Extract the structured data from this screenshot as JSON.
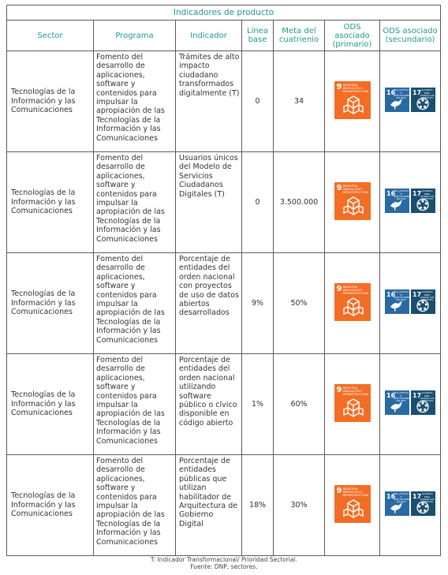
{
  "table_title": "Indicadores de producto",
  "headers": {
    "sector": "Sector",
    "programa": "Programa",
    "indicador": "Indicador",
    "linea_base": "Línea base",
    "meta": "Meta del cuatrienio",
    "ods_primario": "ODS asociado (primario)",
    "ods_secundario": "ODS asociado (secundario)"
  },
  "rows": [
    {
      "sector": "Tecnologías de la Información y las Comunicaciones",
      "programa": "Fomento del desarrollo de aplicaciones, software y contenidos para impulsar la apropiación de las Tecnologías de la Información y las Comunicaciones",
      "indicador": "Trámites de alto impacto ciudadano transformados digitalmente (T)",
      "linea_base": "0",
      "meta": "34"
    },
    {
      "sector": "Tecnologías de la Información y las Comunicaciones",
      "programa": "Fomento del desarrollo de aplicaciones, software y contenidos para impulsar la apropiación de las Tecnologías de la Información y las Comunicaciones",
      "indicador": "Usuarios únicos del Modelo de Servicios Ciudadanos Digitales (T)",
      "linea_base": "0",
      "meta": "3.500.000"
    },
    {
      "sector": "Tecnologías de la Información y las Comunicaciones",
      "programa": "Fomento del desarrollo de aplicaciones, software y contenidos para impulsar la apropiación de las Tecnologías de la Información y las Comunicaciones",
      "indicador": "Porcentaje de entidades del orden nacional con proyectos de uso de datos abiertos desarrollados",
      "linea_base": "9%",
      "meta": "50%"
    },
    {
      "sector": "Tecnologías de la Información y las Comunicaciones",
      "programa": "Fomento del desarrollo de aplicaciones, software y contenidos para impulsar la apropiación de las Tecnologías de la Información y las Comunicaciones",
      "indicador": "Porcentaje de entidades del orden nacional utilizando software público o cívico disponible en código abierto",
      "linea_base": "1%",
      "meta": "60%"
    },
    {
      "sector": "Tecnologías de la Información y las Comunicaciones",
      "programa": "Fomento del desarrollo de aplicaciones, software y contenidos para impulsar la apropiación de las Tecnologías de la Información y las Comunicaciones",
      "indicador": "Porcentaje de entidades públicas que utilizan habilitador de Arquitectura de Gobierno Digital",
      "linea_base": "18%",
      "meta": "30%"
    }
  ],
  "ods_primary_badge": {
    "number": "9",
    "text": "INDUSTRIA, INNOVACIÓN E INFRAESTRUCTURA",
    "color": "#f36d25",
    "icon": "cubes-icon"
  },
  "ods_secondary_badges": [
    {
      "number": "16",
      "text": "PAZ, JUSTICIA E INSTITUCIONES SÓLIDAS",
      "color": "#2a6aa3",
      "icon": "dove-icon"
    },
    {
      "number": "17",
      "text": "ALIANZAS PARA LOGRAR LOS OBJETIVOS",
      "color": "#1b4f72",
      "icon": "partnership-icon"
    }
  ],
  "footer": {
    "line1": "T: Indicador Transformacional/ Prioridad Sectorial.",
    "line2": "Fuente: DNP, sectores."
  }
}
